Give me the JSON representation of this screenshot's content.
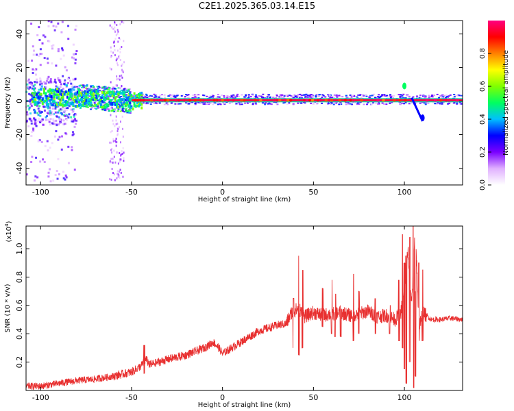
{
  "page_title": "C2E1.2025.365.03.14.E15",
  "chart_data": [
    {
      "type": "heatmap",
      "title": "C2E1.2025.365.03.14.E15",
      "xlabel": "Height of straight line (km)",
      "ylabel": "Frequency (Hz)",
      "xlim": [
        -108,
        132
      ],
      "ylim": [
        -50,
        48
      ],
      "xticks": [
        -100,
        -50,
        0,
        50,
        100
      ],
      "yticks": [
        -40,
        -20,
        0,
        20,
        40
      ],
      "ridge_frequency_hz": 0,
      "colorbar": {
        "label": "Normalized spectral amplitude",
        "range": [
          0,
          1
        ],
        "ticks": [
          "0.0",
          "0.2",
          "0.4",
          "0.6",
          "0.8"
        ],
        "colors": [
          "#ffffff",
          "#e0b0ff",
          "#7a00ff",
          "#0000ff",
          "#00c0ff",
          "#00ff60",
          "#80ff00",
          "#ffff00",
          "#ff8000",
          "#ff0000",
          "#ff0080"
        ]
      },
      "regions": [
        {
          "x": [
            -108,
            -80
          ],
          "spread_hz": 48,
          "peak": 0.45,
          "desc": "noisy scatter"
        },
        {
          "x": [
            -80,
            -50
          ],
          "spread_hz": 12,
          "peak": 0.5
        },
        {
          "x": [
            -50,
            132
          ],
          "spread_hz": 3,
          "peak": 1.0,
          "desc": "narrow ridge near 0 Hz"
        }
      ],
      "features": [
        {
          "x": 100,
          "y": 9,
          "amplitude": 0.5
        },
        {
          "x": 110,
          "y": -10,
          "amplitude": 0.3
        }
      ]
    },
    {
      "type": "line",
      "xlabel": "Height of straight line (km)",
      "ylabel": "SNR (10 * v/v)",
      "y_multiplier": "(x10",
      "y_multiplier_exp": "4",
      "xlim": [
        -108,
        132
      ],
      "ylim": [
        0,
        1.16
      ],
      "xticks": [
        -100,
        -50,
        0,
        50,
        100
      ],
      "yticks": [
        0.2,
        0.4,
        0.6,
        0.8,
        1.0
      ],
      "line_color": "#e83030",
      "series": [
        {
          "name": "SNR",
          "x": [
            -108,
            -100,
            -90,
            -80,
            -70,
            -60,
            -50,
            -45,
            -42,
            -40,
            -30,
            -20,
            -10,
            -5,
            -2,
            0,
            5,
            10,
            15,
            20,
            25,
            30,
            35,
            38,
            42,
            45,
            50,
            55,
            60,
            65,
            70,
            75,
            80,
            85,
            90,
            95,
            98,
            100,
            102,
            104,
            106,
            108,
            110,
            115,
            120,
            125,
            132
          ],
          "y": [
            0.03,
            0.03,
            0.05,
            0.07,
            0.08,
            0.1,
            0.13,
            0.17,
            0.22,
            0.18,
            0.22,
            0.25,
            0.3,
            0.34,
            0.3,
            0.26,
            0.3,
            0.34,
            0.38,
            0.42,
            0.44,
            0.46,
            0.47,
            0.55,
            0.58,
            0.52,
            0.55,
            0.53,
            0.54,
            0.55,
            0.53,
            0.54,
            0.56,
            0.52,
            0.53,
            0.5,
            0.55,
            0.7,
            1.0,
            0.6,
            1.16,
            0.45,
            0.55,
            0.5,
            0.5,
            0.51,
            0.5
          ]
        }
      ],
      "spikes": [
        {
          "x": -43,
          "peak": 0.32,
          "low": 0.12
        },
        {
          "x": 39,
          "peak": 0.65,
          "low": 0.3
        },
        {
          "x": 42,
          "peak": 0.95,
          "low": 0.25
        },
        {
          "x": 44,
          "peak": 0.85,
          "low": 0.3
        },
        {
          "x": 55,
          "peak": 0.72,
          "low": 0.45
        },
        {
          "x": 60,
          "peak": 0.78,
          "low": 0.4
        },
        {
          "x": 62,
          "peak": 0.68,
          "low": 0.38
        },
        {
          "x": 65,
          "peak": 0.6,
          "low": 0.38
        },
        {
          "x": 72,
          "peak": 0.82,
          "low": 0.35
        },
        {
          "x": 75,
          "peak": 0.7,
          "low": 0.4
        },
        {
          "x": 84,
          "peak": 0.65,
          "low": 0.4
        },
        {
          "x": 92,
          "peak": 0.6,
          "low": 0.4
        },
        {
          "x": 97,
          "peak": 0.78,
          "low": 0.35
        },
        {
          "x": 99,
          "peak": 1.1,
          "low": 0.3
        },
        {
          "x": 100,
          "peak": 0.9,
          "low": 0.15
        },
        {
          "x": 101,
          "peak": 0.95,
          "low": 0.05
        },
        {
          "x": 103,
          "peak": 1.08,
          "low": 0.2
        },
        {
          "x": 105,
          "peak": 1.16,
          "low": 0.02
        },
        {
          "x": 106,
          "peak": 0.7,
          "low": 0.1
        },
        {
          "x": 108,
          "peak": 0.9,
          "low": 0.35
        },
        {
          "x": 110,
          "peak": 0.85,
          "low": 0.35
        }
      ]
    }
  ]
}
